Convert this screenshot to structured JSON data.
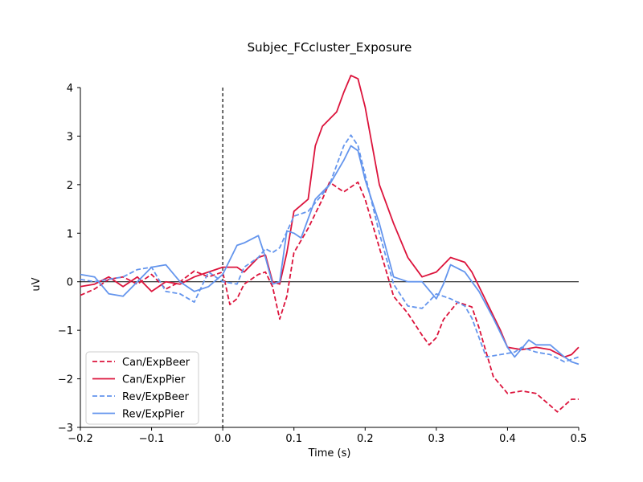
{
  "chart_data": {
    "type": "line",
    "title": "Subjec_FCcluster_Exposure",
    "xlabel": "Time (s)",
    "ylabel": "uV",
    "xlim": [
      -0.2,
      0.5
    ],
    "ylim": [
      -3,
      4
    ],
    "xticks": [
      -0.2,
      -0.1,
      0.0,
      0.1,
      0.2,
      0.3,
      0.4,
      0.5
    ],
    "xtick_labels": [
      "−0.2",
      "−0.1",
      "0.0",
      "0.1",
      "0.2",
      "0.3",
      "0.4",
      "0.5"
    ],
    "yticks": [
      -3,
      -2,
      -1,
      0,
      1,
      2,
      3,
      4
    ],
    "ytick_labels": [
      "−3",
      "−2",
      "−1",
      "0",
      "1",
      "2",
      "3",
      "4"
    ],
    "grid": false,
    "legend_position": "lower-left",
    "vline_x": 0.0,
    "hline_y": 0.0,
    "series": [
      {
        "name": "Can/ExpBeer",
        "color": "#dc143c",
        "dash": "dashed",
        "points": [
          [
            -0.2,
            -0.28
          ],
          [
            -0.18,
            -0.15
          ],
          [
            -0.16,
            0.05
          ],
          [
            -0.14,
            0.1
          ],
          [
            -0.12,
            -0.05
          ],
          [
            -0.1,
            0.15
          ],
          [
            -0.08,
            -0.15
          ],
          [
            -0.06,
            0.0
          ],
          [
            -0.04,
            0.22
          ],
          [
            -0.02,
            0.1
          ],
          [
            0.0,
            0.2
          ],
          [
            0.01,
            -0.47
          ],
          [
            0.02,
            -0.35
          ],
          [
            0.03,
            -0.05
          ],
          [
            0.05,
            0.15
          ],
          [
            0.06,
            0.2
          ],
          [
            0.07,
            -0.1
          ],
          [
            0.08,
            -0.77
          ],
          [
            0.09,
            -0.3
          ],
          [
            0.1,
            0.6
          ],
          [
            0.12,
            1.1
          ],
          [
            0.14,
            1.7
          ],
          [
            0.15,
            2.05
          ],
          [
            0.17,
            1.85
          ],
          [
            0.19,
            2.05
          ],
          [
            0.2,
            1.7
          ],
          [
            0.22,
            0.7
          ],
          [
            0.24,
            -0.3
          ],
          [
            0.26,
            -0.65
          ],
          [
            0.28,
            -1.1
          ],
          [
            0.29,
            -1.3
          ],
          [
            0.3,
            -1.15
          ],
          [
            0.31,
            -0.78
          ],
          [
            0.33,
            -0.42
          ],
          [
            0.35,
            -0.52
          ],
          [
            0.36,
            -0.95
          ],
          [
            0.38,
            -1.95
          ],
          [
            0.4,
            -2.3
          ],
          [
            0.42,
            -2.25
          ],
          [
            0.44,
            -2.3
          ],
          [
            0.46,
            -2.55
          ],
          [
            0.47,
            -2.68
          ],
          [
            0.49,
            -2.42
          ],
          [
            0.5,
            -2.42
          ]
        ]
      },
      {
        "name": "Can/ExpPier",
        "color": "#dc143c",
        "dash": "solid",
        "points": [
          [
            -0.2,
            -0.1
          ],
          [
            -0.18,
            -0.05
          ],
          [
            -0.16,
            0.1
          ],
          [
            -0.14,
            -0.1
          ],
          [
            -0.12,
            0.1
          ],
          [
            -0.1,
            -0.2
          ],
          [
            -0.08,
            0.0
          ],
          [
            -0.06,
            -0.05
          ],
          [
            -0.04,
            0.1
          ],
          [
            -0.02,
            0.2
          ],
          [
            0.0,
            0.3
          ],
          [
            0.02,
            0.3
          ],
          [
            0.03,
            0.2
          ],
          [
            0.05,
            0.5
          ],
          [
            0.06,
            0.55
          ],
          [
            0.07,
            0.0
          ],
          [
            0.08,
            -0.05
          ],
          [
            0.09,
            0.6
          ],
          [
            0.1,
            1.45
          ],
          [
            0.12,
            1.7
          ],
          [
            0.13,
            2.8
          ],
          [
            0.14,
            3.2
          ],
          [
            0.16,
            3.5
          ],
          [
            0.17,
            3.9
          ],
          [
            0.18,
            4.25
          ],
          [
            0.19,
            4.18
          ],
          [
            0.2,
            3.6
          ],
          [
            0.22,
            2.0
          ],
          [
            0.24,
            1.2
          ],
          [
            0.26,
            0.5
          ],
          [
            0.28,
            0.1
          ],
          [
            0.3,
            0.2
          ],
          [
            0.32,
            0.5
          ],
          [
            0.34,
            0.4
          ],
          [
            0.35,
            0.2
          ],
          [
            0.37,
            -0.4
          ],
          [
            0.39,
            -1.0
          ],
          [
            0.4,
            -1.35
          ],
          [
            0.42,
            -1.4
          ],
          [
            0.44,
            -1.35
          ],
          [
            0.46,
            -1.4
          ],
          [
            0.48,
            -1.55
          ],
          [
            0.49,
            -1.5
          ],
          [
            0.5,
            -1.35
          ]
        ]
      },
      {
        "name": "Rev/ExpBeer",
        "color": "#6495ed",
        "dash": "dashed",
        "points": [
          [
            -0.2,
            0.05
          ],
          [
            -0.18,
            0.0
          ],
          [
            -0.16,
            0.05
          ],
          [
            -0.14,
            0.1
          ],
          [
            -0.12,
            0.25
          ],
          [
            -0.1,
            0.3
          ],
          [
            -0.08,
            -0.2
          ],
          [
            -0.06,
            -0.25
          ],
          [
            -0.04,
            -0.42
          ],
          [
            -0.02,
            0.2
          ],
          [
            0.0,
            0.0
          ],
          [
            0.02,
            -0.05
          ],
          [
            0.03,
            0.3
          ],
          [
            0.05,
            0.5
          ],
          [
            0.06,
            0.68
          ],
          [
            0.07,
            0.6
          ],
          [
            0.08,
            0.7
          ],
          [
            0.1,
            1.35
          ],
          [
            0.12,
            1.45
          ],
          [
            0.14,
            1.8
          ],
          [
            0.15,
            2.0
          ],
          [
            0.17,
            2.8
          ],
          [
            0.18,
            3.02
          ],
          [
            0.19,
            2.8
          ],
          [
            0.2,
            2.2
          ],
          [
            0.22,
            1.0
          ],
          [
            0.24,
            -0.05
          ],
          [
            0.26,
            -0.5
          ],
          [
            0.28,
            -0.55
          ],
          [
            0.3,
            -0.25
          ],
          [
            0.32,
            -0.35
          ],
          [
            0.34,
            -0.5
          ],
          [
            0.35,
            -0.75
          ],
          [
            0.37,
            -1.55
          ],
          [
            0.39,
            -1.5
          ],
          [
            0.41,
            -1.45
          ],
          [
            0.42,
            -1.35
          ],
          [
            0.44,
            -1.45
          ],
          [
            0.46,
            -1.5
          ],
          [
            0.48,
            -1.65
          ],
          [
            0.49,
            -1.6
          ],
          [
            0.5,
            -1.55
          ]
        ]
      },
      {
        "name": "Rev/ExpPier",
        "color": "#6495ed",
        "dash": "solid",
        "points": [
          [
            -0.2,
            0.15
          ],
          [
            -0.18,
            0.1
          ],
          [
            -0.16,
            -0.25
          ],
          [
            -0.14,
            -0.3
          ],
          [
            -0.12,
            0.0
          ],
          [
            -0.1,
            0.3
          ],
          [
            -0.08,
            0.35
          ],
          [
            -0.06,
            0.0
          ],
          [
            -0.04,
            -0.2
          ],
          [
            -0.02,
            -0.1
          ],
          [
            0.0,
            0.15
          ],
          [
            0.02,
            0.75
          ],
          [
            0.03,
            0.8
          ],
          [
            0.05,
            0.95
          ],
          [
            0.06,
            0.5
          ],
          [
            0.07,
            -0.05
          ],
          [
            0.08,
            0.0
          ],
          [
            0.09,
            1.05
          ],
          [
            0.1,
            1.0
          ],
          [
            0.11,
            0.9
          ],
          [
            0.13,
            1.7
          ],
          [
            0.15,
            2.0
          ],
          [
            0.17,
            2.5
          ],
          [
            0.18,
            2.8
          ],
          [
            0.19,
            2.7
          ],
          [
            0.2,
            2.1
          ],
          [
            0.22,
            1.2
          ],
          [
            0.24,
            0.1
          ],
          [
            0.26,
            0.0
          ],
          [
            0.28,
            0.0
          ],
          [
            0.3,
            -0.35
          ],
          [
            0.31,
            -0.05
          ],
          [
            0.32,
            0.35
          ],
          [
            0.34,
            0.2
          ],
          [
            0.36,
            -0.2
          ],
          [
            0.38,
            -0.75
          ],
          [
            0.4,
            -1.35
          ],
          [
            0.41,
            -1.55
          ],
          [
            0.43,
            -1.2
          ],
          [
            0.44,
            -1.3
          ],
          [
            0.46,
            -1.3
          ],
          [
            0.48,
            -1.55
          ],
          [
            0.49,
            -1.65
          ],
          [
            0.5,
            -1.7
          ]
        ]
      }
    ]
  }
}
